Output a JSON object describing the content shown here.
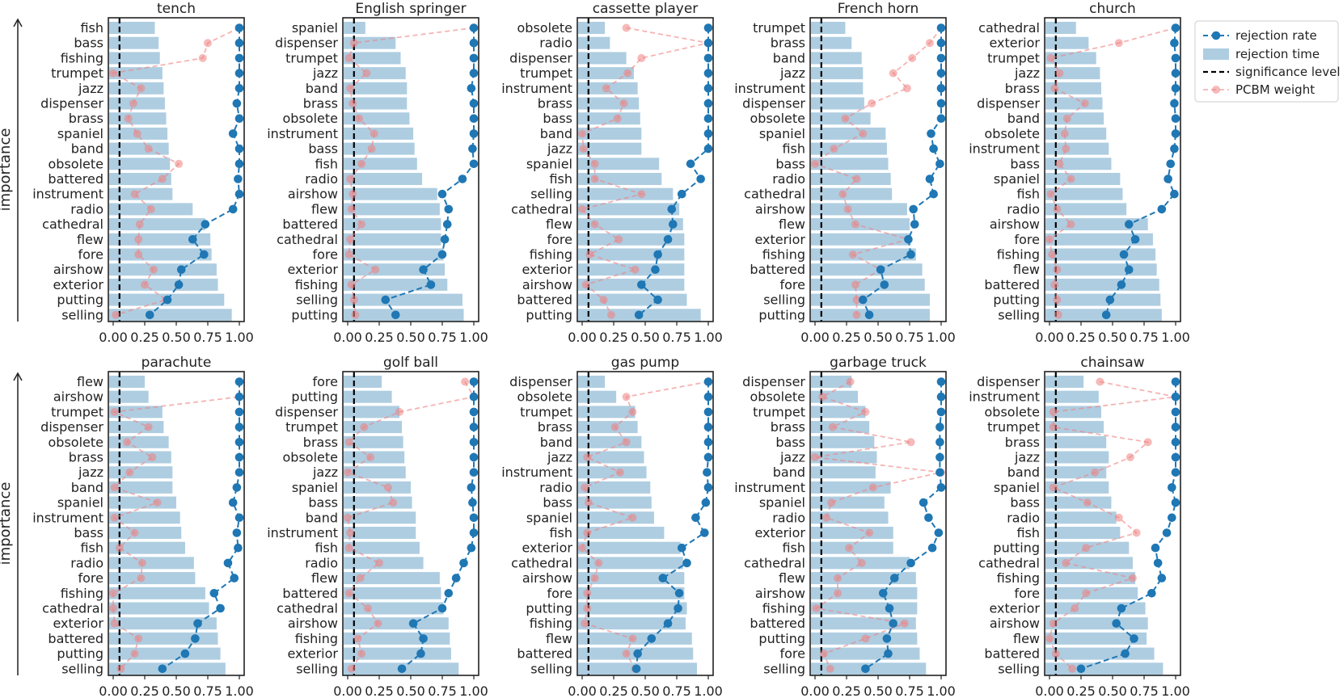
{
  "figure": {
    "ylabel": "importance",
    "xticks": [
      "0.00",
      "0.25",
      "0.50",
      "0.75",
      "1.00"
    ],
    "colors": {
      "rejection_rate": "#1f77b4",
      "rejection_time": "#aecde1",
      "significance": "#000000",
      "pcbm": "#f08080"
    },
    "legend": {
      "placement": "top-right",
      "items": [
        "rejection rate",
        "rejection time",
        "significance level",
        "PCBM weight"
      ]
    }
  },
  "chart_data": [
    {
      "type": "bar+line",
      "title": "tench",
      "xlim": [
        0,
        1
      ],
      "significance": 0.05,
      "categories": [
        "fish",
        "bass",
        "fishing",
        "trumpet",
        "jazz",
        "dispenser",
        "brass",
        "spaniel",
        "band",
        "obsolete",
        "battered",
        "instrument",
        "radio",
        "cathedral",
        "flew",
        "fore",
        "airshow",
        "exterior",
        "putting",
        "selling"
      ],
      "rejection_time": [
        0.33,
        0.36,
        0.37,
        0.39,
        0.4,
        0.41,
        0.42,
        0.43,
        0.44,
        0.45,
        0.46,
        0.47,
        0.63,
        0.73,
        0.77,
        0.78,
        0.82,
        0.83,
        0.88,
        0.94
      ],
      "rejection_rate": [
        1.0,
        1.0,
        1.0,
        1.0,
        1.0,
        0.98,
        1.0,
        0.95,
        1.0,
        1.0,
        0.99,
        1.0,
        0.95,
        0.73,
        0.63,
        0.72,
        0.54,
        0.52,
        0.43,
        0.29
      ],
      "pcbm_weight": [
        1.0,
        0.75,
        0.71,
        0.0,
        0.22,
        0.16,
        0.12,
        0.19,
        0.28,
        0.52,
        0.39,
        0.17,
        0.3,
        0.21,
        0.2,
        0.2,
        0.32,
        0.25,
        0.42,
        0.02
      ]
    },
    {
      "type": "bar+line",
      "title": "English springer",
      "xlim": [
        0,
        1
      ],
      "significance": 0.05,
      "categories": [
        "spaniel",
        "dispenser",
        "trumpet",
        "jazz",
        "band",
        "brass",
        "obsolete",
        "instrument",
        "bass",
        "fish",
        "radio",
        "airshow",
        "flew",
        "battered",
        "cathedral",
        "fore",
        "exterior",
        "fishing",
        "selling",
        "putting"
      ],
      "rejection_time": [
        0.14,
        0.38,
        0.42,
        0.46,
        0.47,
        0.47,
        0.49,
        0.52,
        0.53,
        0.55,
        0.59,
        0.71,
        0.73,
        0.74,
        0.74,
        0.76,
        0.77,
        0.79,
        0.91,
        0.92
      ],
      "rejection_rate": [
        1.0,
        1.0,
        1.0,
        1.0,
        0.98,
        1.0,
        1.0,
        1.0,
        0.99,
        1.0,
        0.91,
        0.75,
        0.8,
        0.79,
        0.77,
        0.75,
        0.6,
        0.66,
        0.3,
        0.38
      ],
      "pcbm_weight": [
        1.0,
        0.05,
        0.01,
        0.15,
        0.02,
        0.04,
        0.09,
        0.21,
        0.19,
        0.11,
        0.02,
        0.04,
        0.03,
        0.11,
        0.02,
        0.01,
        0.22,
        0.03,
        0.05,
        0.06
      ]
    },
    {
      "type": "bar+line",
      "title": "cassette player",
      "xlim": [
        0,
        1
      ],
      "significance": 0.05,
      "categories": [
        "obsolete",
        "radio",
        "dispenser",
        "trumpet",
        "instrument",
        "brass",
        "bass",
        "band",
        "jazz",
        "spaniel",
        "fish",
        "selling",
        "cathedral",
        "flew",
        "fore",
        "fishing",
        "exterior",
        "airshow",
        "battered",
        "putting"
      ],
      "rejection_time": [
        0.18,
        0.22,
        0.35,
        0.41,
        0.44,
        0.45,
        0.46,
        0.47,
        0.47,
        0.61,
        0.63,
        0.72,
        0.77,
        0.8,
        0.81,
        0.81,
        0.81,
        0.81,
        0.83,
        0.94
      ],
      "rejection_rate": [
        1.0,
        1.0,
        1.0,
        1.0,
        1.0,
        1.0,
        1.0,
        1.0,
        1.0,
        0.86,
        0.94,
        0.79,
        0.71,
        0.72,
        0.68,
        0.6,
        0.58,
        0.47,
        0.6,
        0.45
      ],
      "pcbm_weight": [
        0.35,
        1.0,
        0.47,
        0.36,
        0.19,
        0.33,
        0.28,
        0.0,
        0.01,
        0.1,
        0.1,
        0.47,
        0.0,
        0.1,
        0.29,
        0.06,
        0.42,
        0.03,
        0.17,
        0.23
      ]
    },
    {
      "type": "bar+line",
      "title": "French horn",
      "xlim": [
        0,
        1
      ],
      "significance": 0.05,
      "categories": [
        "trumpet",
        "brass",
        "band",
        "jazz",
        "instrument",
        "dispenser",
        "obsolete",
        "spaniel",
        "fish",
        "bass",
        "radio",
        "cathedral",
        "airshow",
        "flew",
        "exterior",
        "fishing",
        "battered",
        "fore",
        "selling",
        "putting"
      ],
      "rejection_time": [
        0.24,
        0.29,
        0.37,
        0.38,
        0.38,
        0.39,
        0.44,
        0.56,
        0.57,
        0.58,
        0.6,
        0.61,
        0.73,
        0.75,
        0.76,
        0.8,
        0.85,
        0.87,
        0.91,
        0.91
      ],
      "rejection_rate": [
        1.0,
        1.0,
        1.0,
        1.0,
        1.0,
        1.0,
        1.0,
        0.92,
        0.94,
        0.99,
        0.91,
        0.94,
        0.78,
        0.79,
        0.74,
        0.76,
        0.52,
        0.55,
        0.38,
        0.43
      ],
      "pcbm_weight": [
        1.0,
        0.91,
        0.77,
        0.62,
        0.73,
        0.45,
        0.24,
        0.38,
        0.15,
        0.0,
        0.33,
        0.22,
        0.26,
        0.32,
        0.74,
        0.3,
        0.52,
        0.32,
        0.33,
        0.33
      ]
    },
    {
      "type": "bar+line",
      "title": "church",
      "xlim": [
        0,
        1
      ],
      "significance": 0.05,
      "categories": [
        "cathedral",
        "exterior",
        "trumpet",
        "jazz",
        "brass",
        "dispenser",
        "band",
        "obsolete",
        "instrument",
        "bass",
        "spaniel",
        "fish",
        "radio",
        "airshow",
        "fore",
        "fishing",
        "flew",
        "battered",
        "putting",
        "selling"
      ],
      "rejection_time": [
        0.21,
        0.31,
        0.37,
        0.4,
        0.41,
        0.42,
        0.43,
        0.45,
        0.47,
        0.49,
        0.56,
        0.58,
        0.61,
        0.78,
        0.82,
        0.84,
        0.85,
        0.87,
        0.88,
        0.89
      ],
      "rejection_rate": [
        1.0,
        0.99,
        1.0,
        1.0,
        1.0,
        0.99,
        1.0,
        1.0,
        0.99,
        0.96,
        0.94,
        0.99,
        0.89,
        0.63,
        0.68,
        0.59,
        0.63,
        0.57,
        0.48,
        0.45
      ],
      "pcbm_weight": [
        1.0,
        0.55,
        0.01,
        0.08,
        0.04,
        0.28,
        0.14,
        0.12,
        0.13,
        0.08,
        0.17,
        0.01,
        0.06,
        0.17,
        0.0,
        0.02,
        0.06,
        0.04,
        0.06,
        0.07
      ]
    },
    {
      "type": "bar+line",
      "title": "parachute",
      "xlim": [
        0,
        1
      ],
      "significance": 0.05,
      "categories": [
        "flew",
        "airshow",
        "trumpet",
        "dispenser",
        "obsolete",
        "brass",
        "jazz",
        "band",
        "spaniel",
        "instrument",
        "bass",
        "fish",
        "radio",
        "fore",
        "fishing",
        "cathedral",
        "exterior",
        "battered",
        "putting",
        "selling"
      ],
      "rejection_time": [
        0.25,
        0.28,
        0.39,
        0.4,
        0.44,
        0.46,
        0.47,
        0.47,
        0.5,
        0.53,
        0.54,
        0.57,
        0.64,
        0.65,
        0.73,
        0.76,
        0.82,
        0.83,
        0.85,
        0.89
      ],
      "rejection_rate": [
        1.0,
        1.0,
        1.0,
        1.0,
        1.0,
        1.0,
        1.0,
        0.98,
        0.95,
        1.0,
        0.98,
        0.99,
        0.91,
        0.96,
        0.8,
        0.85,
        0.67,
        0.65,
        0.57,
        0.39
      ],
      "pcbm_weight": [
        1.0,
        1.0,
        0.01,
        0.28,
        0.11,
        0.31,
        0.13,
        0.01,
        0.35,
        0.01,
        0.17,
        0.05,
        0.23,
        0.22,
        0.0,
        0.0,
        0.01,
        0.2,
        0.17,
        0.06
      ]
    },
    {
      "type": "bar+line",
      "title": "golf ball",
      "xlim": [
        0,
        1
      ],
      "significance": 0.05,
      "categories": [
        "fore",
        "putting",
        "dispenser",
        "trumpet",
        "brass",
        "obsolete",
        "jazz",
        "spaniel",
        "bass",
        "band",
        "instrument",
        "fish",
        "radio",
        "flew",
        "battered",
        "cathedral",
        "airshow",
        "fishing",
        "exterior",
        "selling"
      ],
      "rejection_time": [
        0.27,
        0.35,
        0.41,
        0.43,
        0.44,
        0.45,
        0.46,
        0.5,
        0.51,
        0.54,
        0.54,
        0.57,
        0.6,
        0.73,
        0.74,
        0.76,
        0.8,
        0.81,
        0.82,
        0.88
      ],
      "rejection_rate": [
        1.0,
        1.0,
        1.0,
        1.0,
        1.0,
        1.0,
        1.0,
        0.98,
        0.99,
        1.0,
        1.0,
        0.98,
        0.92,
        0.86,
        0.8,
        0.75,
        0.52,
        0.6,
        0.58,
        0.43
      ],
      "pcbm_weight": [
        0.93,
        1.0,
        0.41,
        0.13,
        0.01,
        0.18,
        0.0,
        0.32,
        0.36,
        0.0,
        0.02,
        0.01,
        0.25,
        0.1,
        0.01,
        0.16,
        0.24,
        0.08,
        0.11,
        0.03
      ]
    },
    {
      "type": "bar+line",
      "title": "gas pump",
      "xlim": [
        0,
        1
      ],
      "significance": 0.05,
      "categories": [
        "dispenser",
        "obsolete",
        "trumpet",
        "brass",
        "band",
        "jazz",
        "instrument",
        "radio",
        "bass",
        "spaniel",
        "fish",
        "exterior",
        "cathedral",
        "airshow",
        "fore",
        "putting",
        "fishing",
        "flew",
        "battered",
        "selling"
      ],
      "rejection_time": [
        0.18,
        0.27,
        0.42,
        0.44,
        0.47,
        0.49,
        0.51,
        0.54,
        0.55,
        0.57,
        0.65,
        0.78,
        0.8,
        0.81,
        0.81,
        0.83,
        0.82,
        0.87,
        0.88,
        0.91
      ],
      "rejection_rate": [
        1.0,
        1.0,
        1.0,
        1.0,
        1.0,
        1.0,
        0.99,
        1.0,
        0.98,
        0.9,
        0.97,
        0.79,
        0.83,
        0.64,
        0.77,
        0.76,
        0.68,
        0.55,
        0.44,
        0.43
      ],
      "pcbm_weight": [
        1.0,
        0.35,
        0.4,
        0.26,
        0.35,
        0.04,
        0.3,
        0.02,
        0.05,
        0.4,
        0.04,
        0.0,
        0.13,
        0.1,
        0.04,
        0.04,
        0.02,
        0.4,
        0.35,
        0.42
      ]
    },
    {
      "type": "bar+line",
      "title": "garbage truck",
      "xlim": [
        0,
        1
      ],
      "significance": 0.05,
      "categories": [
        "dispenser",
        "obsolete",
        "trumpet",
        "brass",
        "bass",
        "jazz",
        "band",
        "instrument",
        "spaniel",
        "radio",
        "exterior",
        "fish",
        "cathedral",
        "flew",
        "airshow",
        "fishing",
        "battered",
        "putting",
        "fore",
        "selling"
      ],
      "rejection_time": [
        0.29,
        0.34,
        0.4,
        0.43,
        0.47,
        0.49,
        0.48,
        0.6,
        0.55,
        0.58,
        0.62,
        0.62,
        0.75,
        0.8,
        0.81,
        0.81,
        0.8,
        0.81,
        0.83,
        0.88
      ],
      "rejection_rate": [
        1.0,
        1.0,
        1.0,
        0.99,
        0.99,
        0.99,
        0.99,
        1.0,
        0.86,
        0.9,
        0.98,
        0.93,
        0.76,
        0.63,
        0.54,
        0.59,
        0.62,
        0.57,
        0.58,
        0.4
      ],
      "pcbm_weight": [
        0.28,
        0.06,
        0.4,
        0.14,
        0.76,
        0.0,
        1.0,
        0.46,
        0.13,
        0.09,
        0.43,
        0.27,
        0.37,
        0.18,
        0.18,
        0.01,
        0.71,
        0.4,
        0.07,
        0.12
      ]
    },
    {
      "type": "bar+line",
      "title": "chainsaw",
      "xlim": [
        0,
        1
      ],
      "significance": 0.05,
      "categories": [
        "dispenser",
        "instrument",
        "obsolete",
        "trumpet",
        "brass",
        "jazz",
        "band",
        "spaniel",
        "bass",
        "radio",
        "fish",
        "putting",
        "cathedral",
        "fishing",
        "fore",
        "exterior",
        "airshow",
        "flew",
        "battered",
        "selling"
      ],
      "rejection_time": [
        0.27,
        0.39,
        0.41,
        0.43,
        0.45,
        0.47,
        0.45,
        0.47,
        0.49,
        0.53,
        0.56,
        0.63,
        0.66,
        0.68,
        0.7,
        0.76,
        0.78,
        0.77,
        0.83,
        0.9
      ],
      "rejection_rate": [
        1.0,
        1.0,
        1.0,
        1.0,
        1.0,
        1.0,
        1.0,
        0.97,
        1.0,
        0.97,
        0.93,
        0.84,
        0.86,
        0.89,
        0.81,
        0.57,
        0.53,
        0.67,
        0.6,
        0.25
      ],
      "pcbm_weight": [
        0.4,
        1.0,
        0.03,
        0.03,
        0.78,
        0.64,
        0.36,
        0.03,
        0.3,
        0.55,
        0.69,
        0.29,
        0.13,
        0.66,
        0.29,
        0.2,
        0.03,
        0.0,
        0.05,
        0.18
      ]
    }
  ]
}
